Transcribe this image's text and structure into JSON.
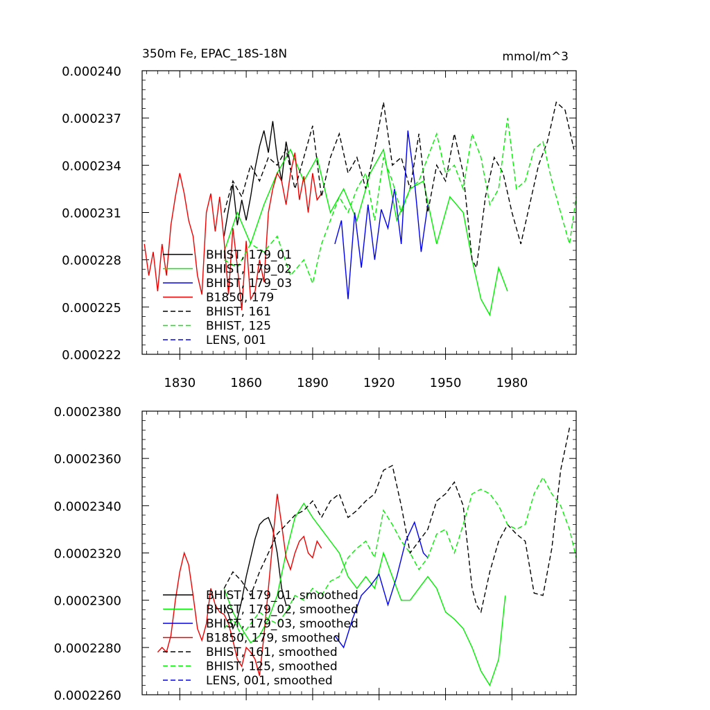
{
  "chart_data": [
    {
      "type": "line",
      "title": "350m Fe, EPAC_18S-18N",
      "units": "mmol/m^3",
      "xlabel": "",
      "ylabel": "",
      "xlim": [
        1813,
        2009
      ],
      "ylim": [
        0.000222,
        0.00024
      ],
      "x_ticks": [
        1830,
        1860,
        1890,
        1920,
        1950,
        1980
      ],
      "x_tick_labels": [
        "1830",
        "1860",
        "1890",
        "1920",
        "1950",
        "1980"
      ],
      "y_ticks": [
        0.000222,
        0.000225,
        0.000228,
        0.000231,
        0.000234,
        0.000237,
        0.00024
      ],
      "y_tick_labels": [
        "0.000222",
        "0.000225",
        "0.000228",
        "0.000231",
        "0.000234",
        "0.000237",
        "0.000240"
      ],
      "legend_position": "bottom-left",
      "series": [
        {
          "name": "BHIST, 179_01",
          "color": "#000000",
          "dash": "solid",
          "x": [
            1850,
            1852,
            1854,
            1856,
            1858,
            1860,
            1862,
            1864,
            1866,
            1868,
            1870,
            1872,
            1874,
            1876,
            1878,
            1880
          ],
          "y": [
            0.0002295,
            0.0002312,
            0.0002328,
            0.0002302,
            0.0002318,
            0.0002305,
            0.000232,
            0.0002338,
            0.0002352,
            0.0002362,
            0.0002348,
            0.0002368,
            0.0002345,
            0.000233,
            0.0002355,
            0.000234
          ]
        },
        {
          "name": "BHIST, 179_02",
          "color": "#00ee00",
          "dash": "solid",
          "x": [
            1850,
            1856,
            1862,
            1868,
            1874,
            1880,
            1886,
            1892,
            1898,
            1904,
            1910,
            1916,
            1922,
            1928,
            1934,
            1940,
            1946,
            1952,
            1958,
            1962,
            1966,
            1970,
            1974,
            1978
          ],
          "y": [
            0.0002285,
            0.000231,
            0.000229,
            0.0002315,
            0.0002335,
            0.000235,
            0.000233,
            0.0002345,
            0.000231,
            0.0002325,
            0.0002305,
            0.0002335,
            0.000235,
            0.0002305,
            0.0002325,
            0.000233,
            0.000229,
            0.000232,
            0.000231,
            0.000228,
            0.0002255,
            0.0002245,
            0.0002275,
            0.000226
          ]
        },
        {
          "name": "BHIST, 179_03",
          "color": "#0000ee",
          "dash": "solid",
          "x": [
            1900,
            1903,
            1906,
            1909,
            1912,
            1915,
            1918,
            1921,
            1924,
            1927,
            1930,
            1933,
            1936,
            1939,
            1942
          ],
          "y": [
            0.000229,
            0.0002305,
            0.0002255,
            0.000231,
            0.0002275,
            0.0002315,
            0.000228,
            0.0002312,
            0.00023,
            0.0002325,
            0.000229,
            0.0002362,
            0.000233,
            0.0002285,
            0.0002315
          ]
        },
        {
          "name": "B1850, 179",
          "color": "#ee0000",
          "dash": "solid",
          "x": [
            1814,
            1816,
            1818,
            1820,
            1822,
            1824,
            1826,
            1828,
            1830,
            1832,
            1834,
            1836,
            1838,
            1840,
            1842,
            1844,
            1846,
            1848,
            1850,
            1852,
            1854,
            1856,
            1858,
            1860,
            1862,
            1864,
            1866,
            1868,
            1870,
            1872,
            1874,
            1876,
            1878,
            1880,
            1882,
            1884,
            1886,
            1888,
            1890,
            1892,
            1894
          ],
          "y": [
            0.000229,
            0.000227,
            0.0002285,
            0.000226,
            0.000229,
            0.000227,
            0.0002302,
            0.000232,
            0.0002335,
            0.0002322,
            0.0002305,
            0.0002295,
            0.000227,
            0.0002258,
            0.000231,
            0.0002322,
            0.0002298,
            0.000232,
            0.0002292,
            0.0002258,
            0.00023,
            0.0002276,
            0.0002248,
            0.0002292,
            0.0002255,
            0.000226,
            0.000228,
            0.0002266,
            0.000231,
            0.0002325,
            0.0002335,
            0.000233,
            0.0002315,
            0.0002335,
            0.0002348,
            0.0002318,
            0.0002333,
            0.000231,
            0.0002335,
            0.0002318,
            0.0002322
          ]
        },
        {
          "name": "BHIST, 161",
          "color": "#000000",
          "dash": "dashed",
          "x": [
            1850,
            1854,
            1858,
            1862,
            1866,
            1870,
            1874,
            1878,
            1882,
            1886,
            1890,
            1894,
            1898,
            1902,
            1906,
            1910,
            1914,
            1918,
            1922,
            1926,
            1930,
            1934,
            1938,
            1942,
            1946,
            1950,
            1954,
            1958,
            1962,
            1964,
            1968,
            1972,
            1976,
            1980,
            1984,
            1988,
            1992,
            1996,
            2000,
            2004,
            2008
          ],
          "y": [
            0.000231,
            0.000233,
            0.000232,
            0.000234,
            0.000233,
            0.0002345,
            0.000234,
            0.000235,
            0.0002325,
            0.0002345,
            0.0002365,
            0.000232,
            0.0002345,
            0.000236,
            0.0002335,
            0.0002345,
            0.0002325,
            0.000235,
            0.000238,
            0.000234,
            0.0002345,
            0.0002325,
            0.000236,
            0.000231,
            0.000234,
            0.000233,
            0.000236,
            0.0002335,
            0.000228,
            0.0002275,
            0.000232,
            0.0002345,
            0.0002335,
            0.000231,
            0.000229,
            0.0002315,
            0.000234,
            0.0002355,
            0.000238,
            0.0002375,
            0.000235
          ]
        },
        {
          "name": "BHIST, 125",
          "color": "#00ee00",
          "dash": "dashed",
          "x": [
            1850,
            1856,
            1862,
            1868,
            1874,
            1880,
            1886,
            1890,
            1894,
            1898,
            1902,
            1906,
            1910,
            1914,
            1918,
            1922,
            1926,
            1930,
            1934,
            1938,
            1942,
            1946,
            1950,
            1954,
            1958,
            1962,
            1966,
            1970,
            1974,
            1978,
            1982,
            1986,
            1990,
            1994,
            1998,
            2002,
            2006,
            2009
          ],
          "y": [
            0.000228,
            0.0002275,
            0.000229,
            0.0002285,
            0.0002295,
            0.000227,
            0.000228,
            0.0002265,
            0.000229,
            0.0002305,
            0.000232,
            0.000231,
            0.0002325,
            0.0002335,
            0.0002305,
            0.0002345,
            0.000233,
            0.000231,
            0.0002325,
            0.000233,
            0.0002345,
            0.000236,
            0.0002335,
            0.000234,
            0.0002325,
            0.000236,
            0.0002345,
            0.0002315,
            0.0002325,
            0.000237,
            0.0002325,
            0.000233,
            0.000235,
            0.0002355,
            0.000233,
            0.000231,
            0.000229,
            0.000232
          ]
        },
        {
          "name": "LENS, 001",
          "color": "#0000ee",
          "dash": "dashed",
          "x": [],
          "y": []
        }
      ]
    },
    {
      "type": "line",
      "title": "",
      "xlabel": "",
      "ylabel": "",
      "xlim": [
        1813,
        2009
      ],
      "ylim": [
        0.000226,
        0.000238
      ],
      "x_ticks": [
        1830,
        1860,
        1890,
        1920,
        1950,
        1980
      ],
      "y_ticks": [
        0.000226,
        0.000228,
        0.00023,
        0.000232,
        0.000234,
        0.000236,
        0.000238
      ],
      "y_tick_labels": [
        "0.0002260",
        "0.0002280",
        "0.0002300",
        "0.0002320",
        "0.0002340",
        "0.0002360",
        "0.0002380"
      ],
      "legend_position": "bottom-left",
      "series": [
        {
          "name": "BHIST, 179_01, smoothed",
          "color": "#000000",
          "dash": "solid",
          "x": [
            1850,
            1852,
            1854,
            1856,
            1858,
            1860,
            1862,
            1864,
            1866,
            1868,
            1870,
            1872,
            1874,
            1876,
            1878
          ],
          "y": [
            0.0002298,
            0.0002294,
            0.0002288,
            0.0002292,
            0.00023,
            0.000231,
            0.0002318,
            0.0002326,
            0.0002332,
            0.0002334,
            0.0002335,
            0.000233,
            0.000232,
            0.0002305,
            0.0002298
          ]
        },
        {
          "name": "BHIST, 179_02, smoothed",
          "color": "#00ee00",
          "dash": "solid",
          "x": [
            1850,
            1854,
            1858,
            1862,
            1866,
            1870,
            1874,
            1878,
            1882,
            1886,
            1890,
            1894,
            1898,
            1902,
            1906,
            1910,
            1914,
            1918,
            1922,
            1926,
            1930,
            1934,
            1938,
            1942,
            1946,
            1950,
            1954,
            1958,
            1962,
            1966,
            1970,
            1974,
            1977
          ],
          "y": [
            0.0002305,
            0.0002295,
            0.0002288,
            0.0002282,
            0.0002285,
            0.0002292,
            0.0002302,
            0.000232,
            0.0002335,
            0.0002341,
            0.0002335,
            0.000233,
            0.0002325,
            0.000232,
            0.000231,
            0.0002305,
            0.000231,
            0.0002305,
            0.000232,
            0.000231,
            0.00023,
            0.00023,
            0.0002305,
            0.000231,
            0.0002305,
            0.0002295,
            0.0002292,
            0.0002288,
            0.000228,
            0.000227,
            0.0002264,
            0.0002275,
            0.0002302
          ]
        },
        {
          "name": "BHIST, 179_03, smoothed",
          "color": "#0000ee",
          "dash": "solid",
          "x": [
            1900,
            1904,
            1908,
            1912,
            1916,
            1920,
            1924,
            1928,
            1932,
            1936,
            1940,
            1942
          ],
          "y": [
            0.0002285,
            0.000228,
            0.0002292,
            0.0002302,
            0.0002306,
            0.0002311,
            0.0002298,
            0.000231,
            0.0002325,
            0.0002333,
            0.000232,
            0.0002318
          ]
        },
        {
          "name": "B1850, 179, smoothed",
          "color": "#ee0000",
          "dash": "solid",
          "x": [
            1820,
            1822,
            1824,
            1826,
            1828,
            1830,
            1832,
            1834,
            1836,
            1838,
            1840,
            1842,
            1844,
            1846,
            1848,
            1850,
            1852,
            1854,
            1856,
            1858,
            1860,
            1862,
            1864,
            1866,
            1868,
            1870,
            1872,
            1874,
            1876,
            1878,
            1880,
            1882,
            1884,
            1886,
            1888,
            1890,
            1892,
            1894
          ],
          "y": [
            0.0002278,
            0.000228,
            0.0002278,
            0.0002285,
            0.00023,
            0.0002312,
            0.000232,
            0.0002315,
            0.0002302,
            0.0002288,
            0.0002283,
            0.000229,
            0.0002305,
            0.0002298,
            0.0002295,
            0.0002294,
            0.000229,
            0.0002283,
            0.0002275,
            0.0002272,
            0.000228,
            0.0002278,
            0.0002275,
            0.0002268,
            0.0002285,
            0.0002305,
            0.0002325,
            0.0002345,
            0.0002332,
            0.0002318,
            0.0002313,
            0.000232,
            0.0002325,
            0.0002327,
            0.000232,
            0.0002318,
            0.0002325,
            0.0002322
          ]
        },
        {
          "name": "BHIST, 161, smoothed",
          "color": "#000000",
          "dash": "dashed",
          "x": [
            1850,
            1854,
            1858,
            1862,
            1866,
            1870,
            1874,
            1878,
            1882,
            1886,
            1890,
            1894,
            1898,
            1902,
            1906,
            1910,
            1914,
            1918,
            1922,
            1926,
            1930,
            1934,
            1938,
            1942,
            1946,
            1950,
            1954,
            1958,
            1962,
            1964,
            1966,
            1970,
            1974,
            1978,
            1982,
            1986,
            1990,
            1994,
            1998,
            2002,
            2006
          ],
          "y": [
            0.0002305,
            0.0002312,
            0.0002308,
            0.0002302,
            0.0002312,
            0.000232,
            0.0002328,
            0.0002332,
            0.0002336,
            0.0002338,
            0.0002342,
            0.0002335,
            0.0002342,
            0.0002345,
            0.0002335,
            0.0002338,
            0.0002342,
            0.0002345,
            0.0002355,
            0.0002357,
            0.000234,
            0.000232,
            0.0002325,
            0.000233,
            0.0002342,
            0.0002345,
            0.000235,
            0.000234,
            0.0002305,
            0.0002298,
            0.0002295,
            0.0002312,
            0.0002325,
            0.0002332,
            0.0002328,
            0.0002325,
            0.0002303,
            0.0002302,
            0.0002322,
            0.0002355,
            0.0002373
          ]
        },
        {
          "name": "BHIST, 125, smoothed",
          "color": "#00ee00",
          "dash": "dashed",
          "x": [
            1850,
            1854,
            1858,
            1862,
            1866,
            1870,
            1874,
            1878,
            1882,
            1886,
            1890,
            1894,
            1898,
            1902,
            1906,
            1910,
            1914,
            1918,
            1922,
            1926,
            1930,
            1934,
            1938,
            1942,
            1946,
            1950,
            1954,
            1958,
            1962,
            1966,
            1970,
            1974,
            1978,
            1982,
            1986,
            1990,
            1994,
            1998,
            2002,
            2006,
            2009
          ],
          "y": [
            0.0002288,
            0.0002292,
            0.0002285,
            0.000229,
            0.0002295,
            0.0002292,
            0.000229,
            0.0002295,
            0.0002302,
            0.00023,
            0.0002305,
            0.0002302,
            0.0002308,
            0.000231,
            0.0002318,
            0.0002322,
            0.0002325,
            0.0002318,
            0.0002338,
            0.0002332,
            0.0002325,
            0.000232,
            0.0002313,
            0.0002318,
            0.0002328,
            0.000233,
            0.000232,
            0.0002332,
            0.0002345,
            0.0002347,
            0.0002345,
            0.000234,
            0.0002332,
            0.000233,
            0.0002332,
            0.0002345,
            0.0002352,
            0.0002345,
            0.000234,
            0.000233,
            0.0002318
          ]
        },
        {
          "name": "LENS, 001, smoothed",
          "color": "#0000ee",
          "dash": "dashed",
          "x": [],
          "y": []
        }
      ]
    }
  ]
}
